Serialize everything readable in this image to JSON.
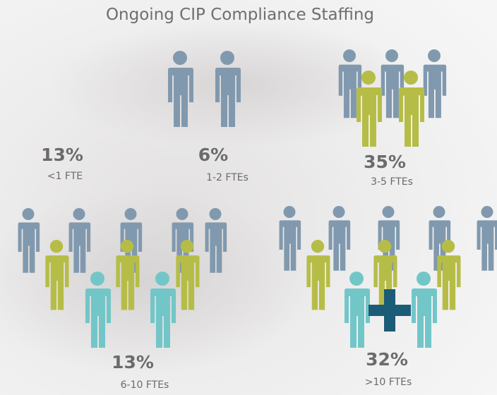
{
  "chart_data": {
    "type": "pictogram",
    "title": "Ongoing CIP Compliance Staffing",
    "categories": [
      "<1 FTE",
      "1-2 FTEs",
      "3-5 FTEs",
      "6-10 FTEs",
      ">10 FTEs"
    ],
    "values": [
      13,
      6,
      35,
      13,
      32
    ],
    "value_labels": [
      "13%",
      "6%",
      "35%",
      "13%",
      "32%"
    ]
  }
}
